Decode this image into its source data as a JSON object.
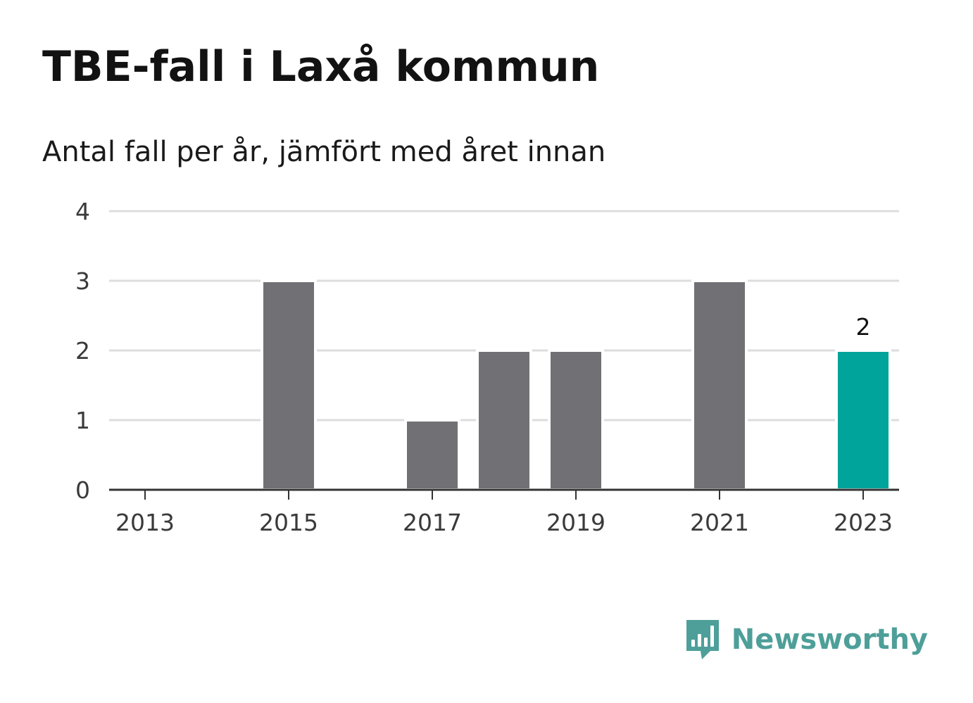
{
  "title": "TBE-fall i Laxå kommun",
  "subtitle": "Antal fall per år, jämfört med året innan",
  "brand": {
    "name": "Newsworthy",
    "icon": "newsworthy-bar-chart-icon",
    "color": "#4e9f99"
  },
  "colors": {
    "bar": "#717075",
    "highlight": "#00a49a",
    "gridline": "#dddddd",
    "axis": "#333333"
  },
  "chart_data": {
    "type": "bar",
    "categories": [
      "2013",
      "2014",
      "2015",
      "2016",
      "2017",
      "2018",
      "2019",
      "2020",
      "2021",
      "2022",
      "2023"
    ],
    "values": [
      0,
      0,
      3,
      0,
      1,
      2,
      2,
      0,
      3,
      0,
      2
    ],
    "x_tick_labels": [
      "2013",
      "2015",
      "2017",
      "2019",
      "2021",
      "2023"
    ],
    "y_ticks": [
      0,
      1,
      2,
      3,
      4
    ],
    "ylim": [
      0,
      4
    ],
    "highlight_category": "2023",
    "data_labels": [
      {
        "category": "2023",
        "text": "2"
      }
    ],
    "grid": true,
    "legend": "none",
    "xlabel": "",
    "ylabel": ""
  }
}
